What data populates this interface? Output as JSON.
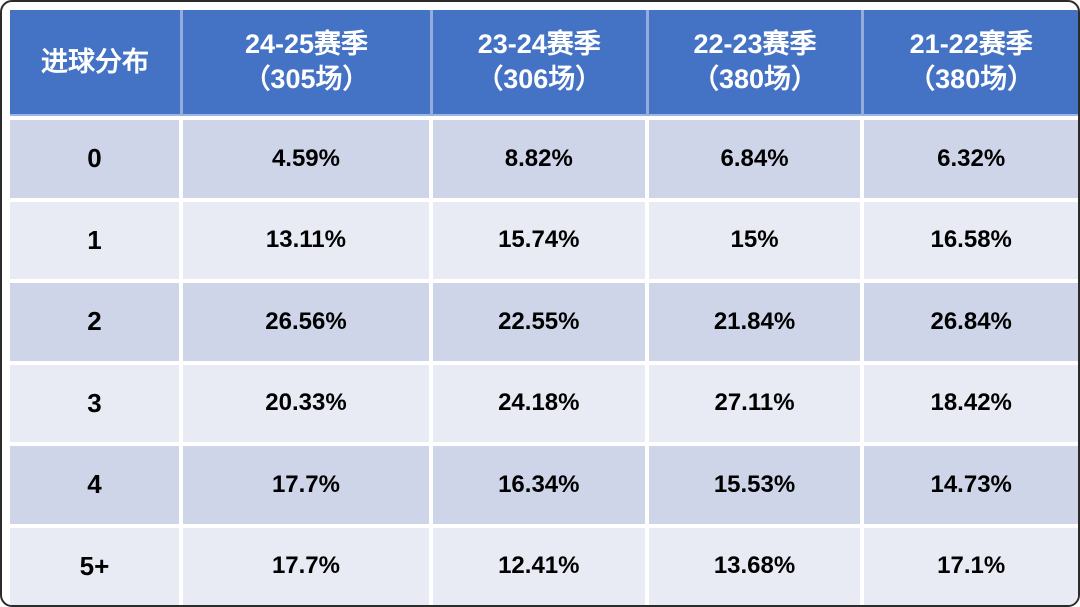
{
  "chart_data": {
    "type": "table",
    "corner_header": "进球分布",
    "season_columns": [
      {
        "label": "24-25赛季",
        "sub": "（305场）"
      },
      {
        "label": "23-24赛季",
        "sub": "（306场）"
      },
      {
        "label": "22-23赛季",
        "sub": "（380场）"
      },
      {
        "label": "21-22赛季",
        "sub": "（380场）"
      }
    ],
    "rows": [
      {
        "label": "0",
        "values": [
          "4.59%",
          "8.82%",
          "6.84%",
          "6.32%"
        ]
      },
      {
        "label": "1",
        "values": [
          "13.11%",
          "15.74%",
          "15%",
          "16.58%"
        ]
      },
      {
        "label": "2",
        "values": [
          "26.56%",
          "22.55%",
          "21.84%",
          "26.84%"
        ]
      },
      {
        "label": "3",
        "values": [
          "20.33%",
          "24.18%",
          "27.11%",
          "18.42%"
        ]
      },
      {
        "label": "4",
        "values": [
          "17.7%",
          "16.34%",
          "15.53%",
          "14.73%"
        ]
      },
      {
        "label": "5+",
        "values": [
          "17.7%",
          "12.41%",
          "13.68%",
          "17.1%"
        ]
      }
    ]
  },
  "colors": {
    "header_bg": "#4472C4",
    "header_text": "#ffffff",
    "header_divider": "#94ACDC",
    "row_stripe_dark": "#CFD5E9",
    "row_stripe_light": "#E9EBF4",
    "gridline": "#ffffff",
    "body_text": "#000000",
    "frame_border": "#2b2b2b"
  }
}
